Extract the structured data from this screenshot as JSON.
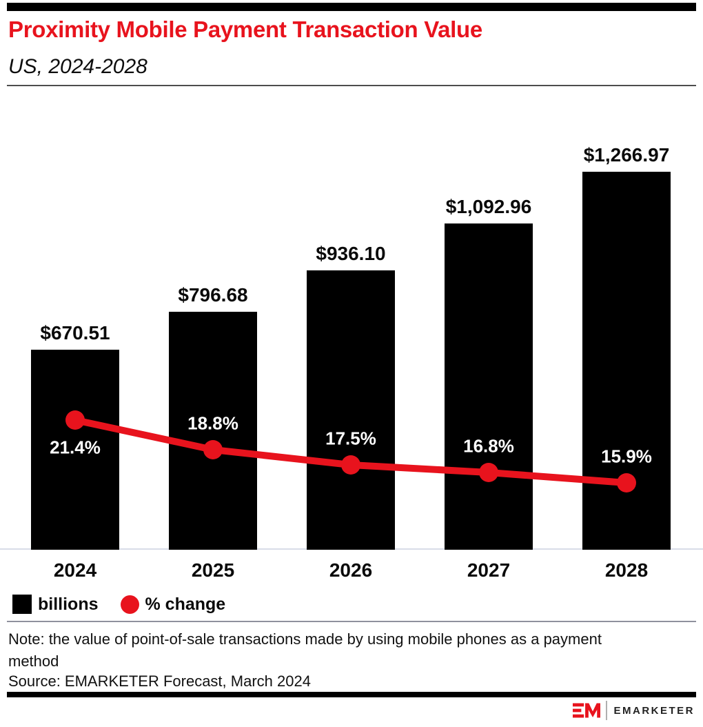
{
  "header": {
    "title": "Proximity Mobile Payment Transaction Value",
    "subtitle": "US, 2024-2028"
  },
  "chart_data": {
    "type": "bar+line",
    "title": "Proximity Mobile Payment Transaction Value",
    "subtitle": "US, 2024-2028",
    "categories": [
      "2024",
      "2025",
      "2026",
      "2027",
      "2028"
    ],
    "series": [
      {
        "name": "billions",
        "type": "bar",
        "unit": "US$ billions",
        "color": "#000000",
        "values": [
          670.51,
          796.68,
          936.1,
          1092.96,
          1266.97
        ],
        "data_labels": [
          "$670.51",
          "$796.68",
          "$936.10",
          "$1,092.96",
          "$1,266.97"
        ]
      },
      {
        "name": "% change",
        "type": "line",
        "color": "#e8131d",
        "values": [
          21.4,
          18.8,
          17.5,
          16.8,
          15.9
        ],
        "data_labels": [
          "21.4%",
          "18.8%",
          "17.5%",
          "16.8%",
          "15.9%"
        ]
      }
    ],
    "xlabel": "",
    "ylabel": "",
    "gridlines": false,
    "y_axis_visible": false,
    "legend_position": "bottom"
  },
  "footer": {
    "note": "Note: the value of point-of-sale transactions made by using mobile phones as a payment method",
    "source": "Source: EMARKETER Forecast, March 2024",
    "logo_monogram": "EM",
    "logo_text": "EMARKETER"
  },
  "colors": {
    "brand_red": "#e8131d",
    "bar_black": "#000000",
    "axis_line": "#d8dce8",
    "header_rule": "#4d4d4d",
    "footer_rule": "#8f919d"
  }
}
